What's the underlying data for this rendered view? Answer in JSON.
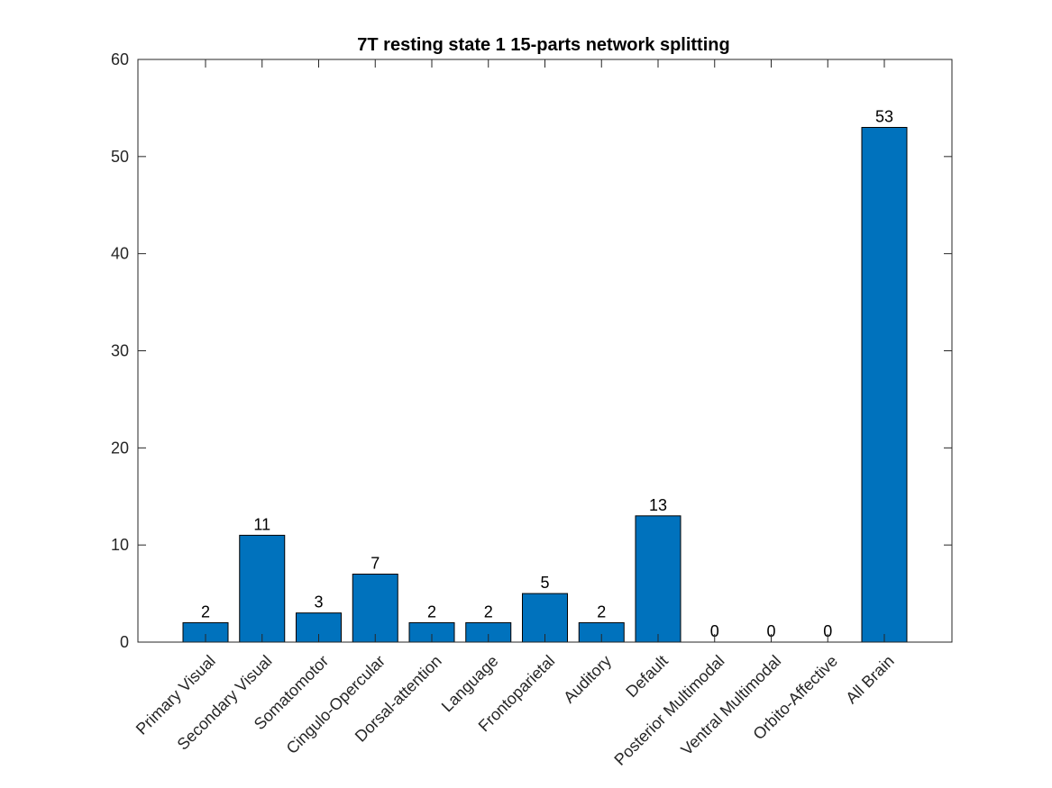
{
  "chart_data": {
    "type": "bar",
    "title": "7T resting state 1 15-parts network splitting",
    "xlabel": "",
    "ylabel": "",
    "categories": [
      "Primary Visual",
      "Secondary Visual",
      "Somatomotor",
      "Cingulo-Opercular",
      "Dorsal-attention",
      "Language",
      "Frontoparietal",
      "Auditory",
      "Default",
      "Posterior Multimodal",
      "Ventral Multimodal",
      "Orbito-Affective",
      "All Brain"
    ],
    "values": [
      2,
      11,
      3,
      7,
      2,
      2,
      5,
      2,
      13,
      0,
      0,
      0,
      53
    ],
    "ylim": [
      0,
      60
    ],
    "yticks": [
      0,
      10,
      20,
      30,
      40,
      50,
      60
    ],
    "grid": false,
    "bar_color": "#0072BD",
    "data_labels": true
  }
}
